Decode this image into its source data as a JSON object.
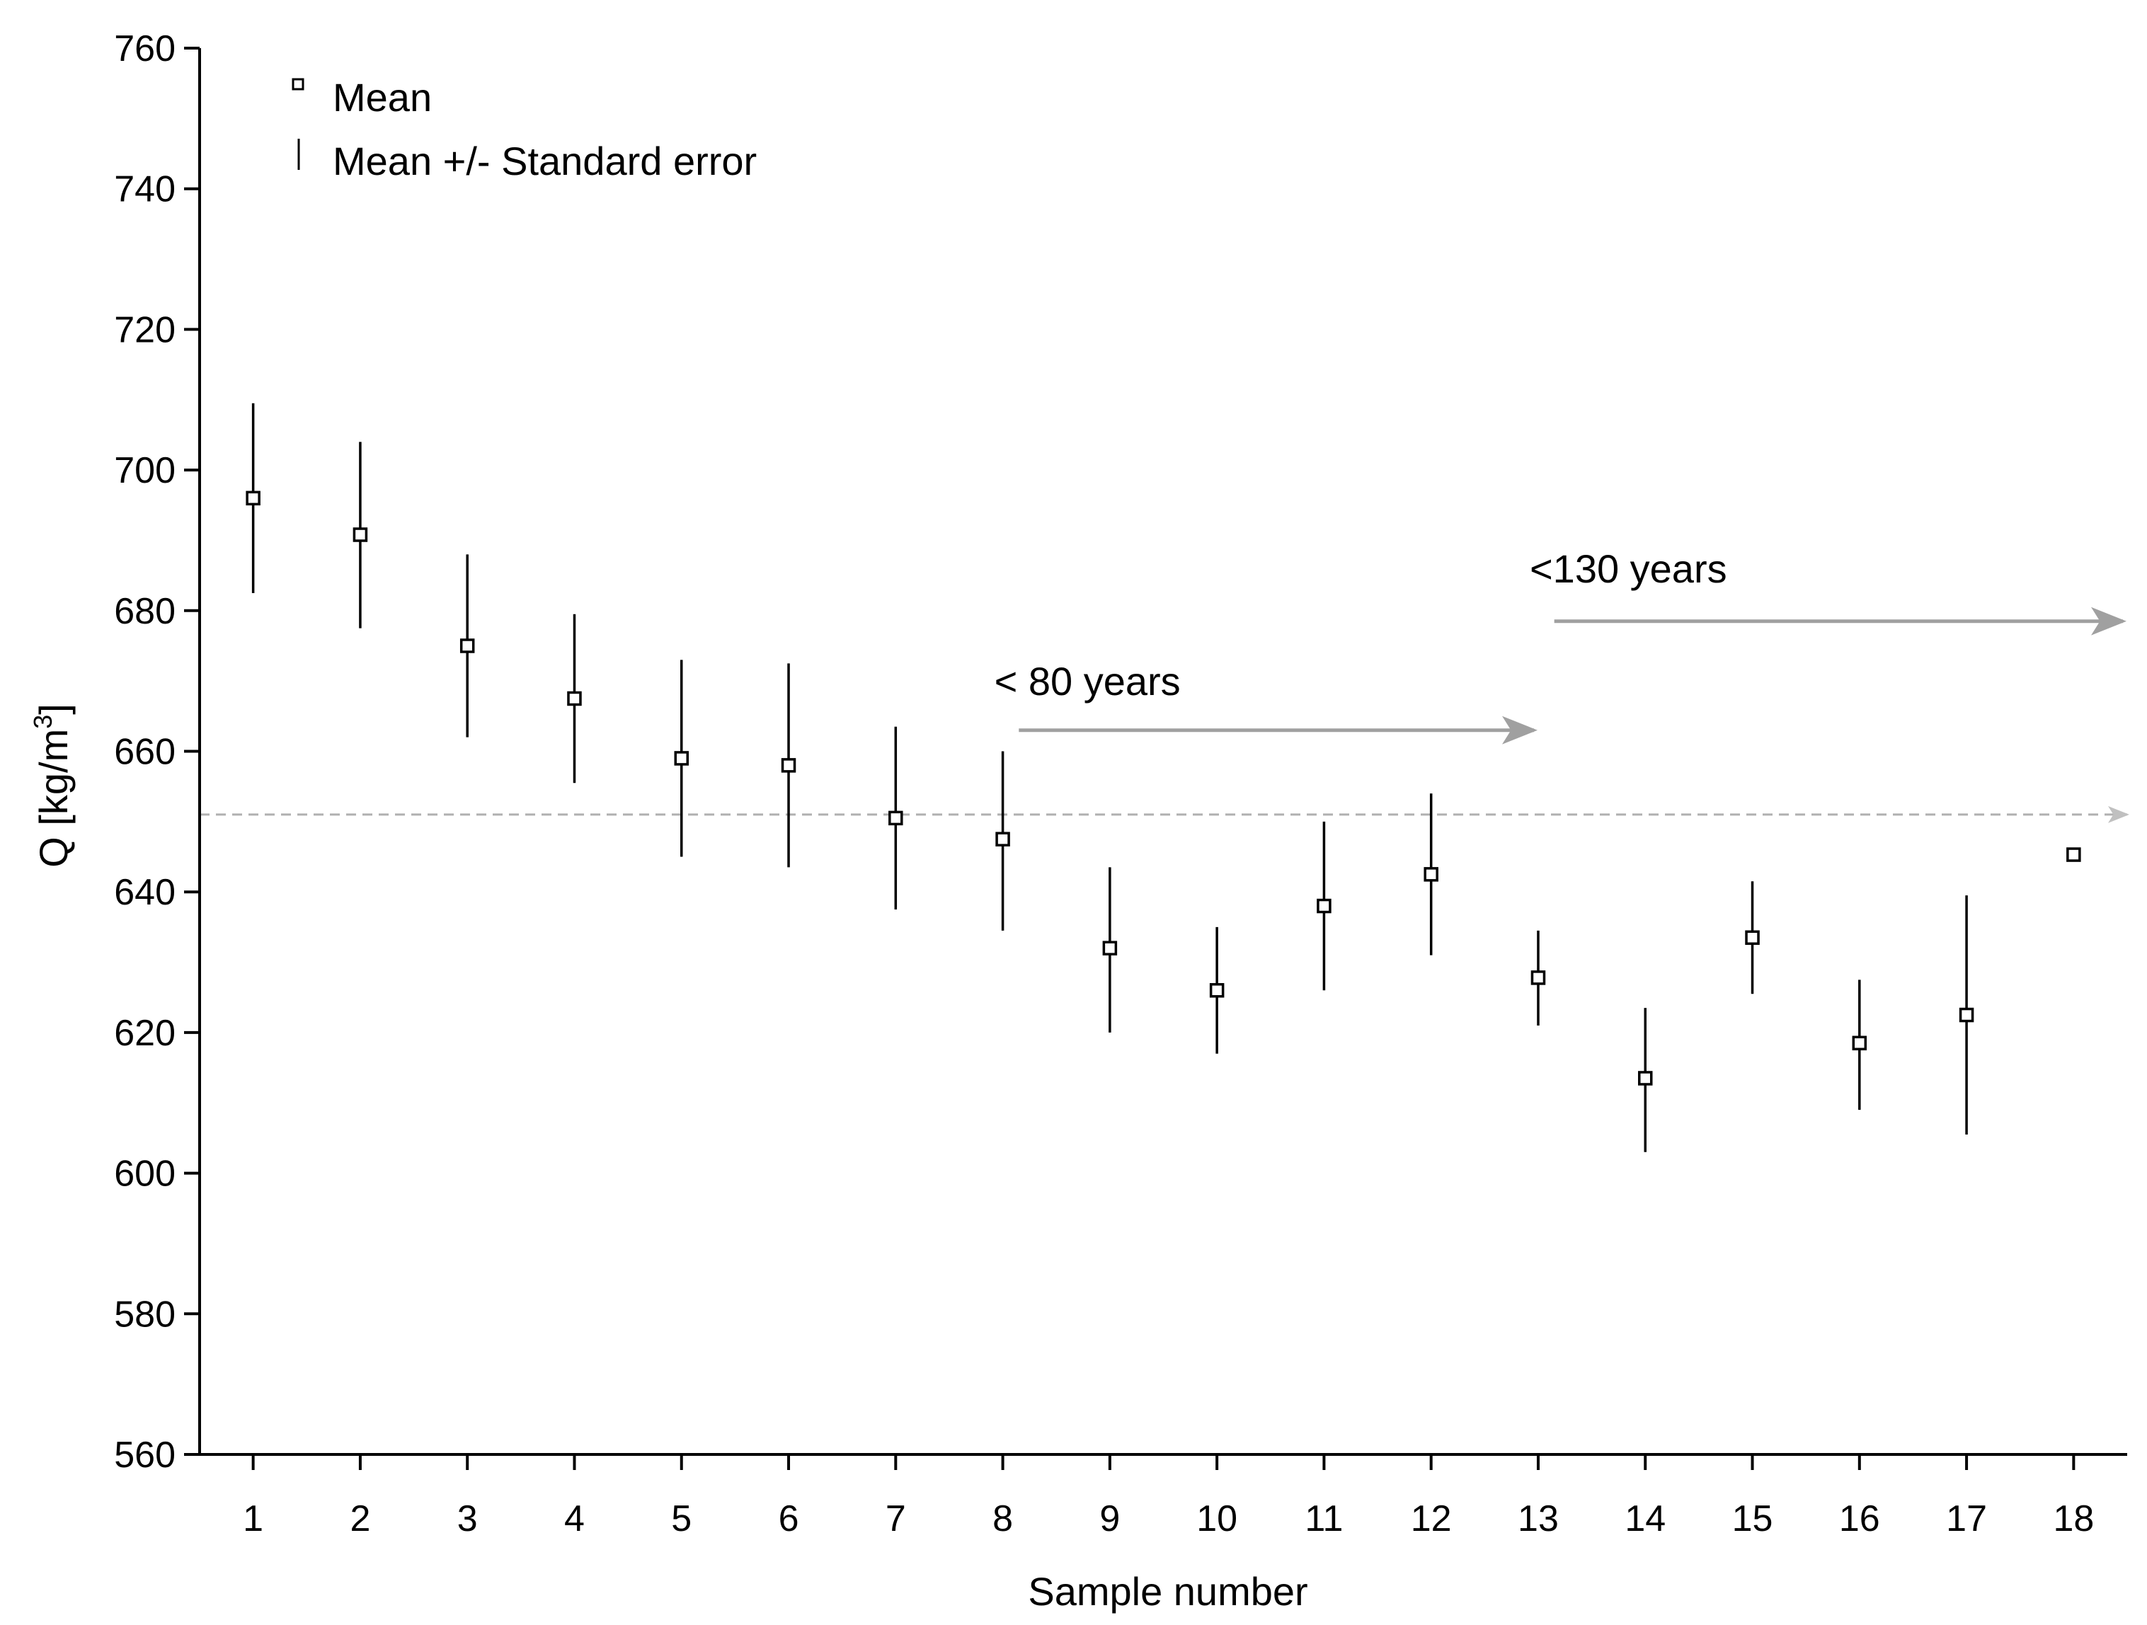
{
  "chart_data": {
    "type": "scatter",
    "title": "",
    "xlabel": "Sample number",
    "ylabel": {
      "base": "Q [kg/m",
      "sup": "3",
      "close": "]"
    },
    "xlim": [
      0.5,
      18.5
    ],
    "ylim": [
      560,
      760
    ],
    "x_ticks": [
      1,
      2,
      3,
      4,
      5,
      6,
      7,
      8,
      9,
      10,
      11,
      12,
      13,
      14,
      15,
      16,
      17,
      18
    ],
    "y_ticks": [
      560,
      580,
      600,
      620,
      640,
      660,
      680,
      700,
      720,
      740,
      760
    ],
    "legend": {
      "position": "top-left",
      "items": [
        {
          "symbol": "square-marker",
          "label": "Mean"
        },
        {
          "symbol": "vertical-line",
          "label": "Mean +/- Standard error"
        }
      ]
    },
    "series": [
      {
        "name": "Mean",
        "points": [
          {
            "x": 1,
            "mean": 696,
            "low": 682.5,
            "high": 709.5
          },
          {
            "x": 2,
            "mean": 690.8,
            "low": 677.5,
            "high": 704
          },
          {
            "x": 3,
            "mean": 675,
            "low": 662,
            "high": 688
          },
          {
            "x": 4,
            "mean": 667.5,
            "low": 655.5,
            "high": 679.5
          },
          {
            "x": 5,
            "mean": 659,
            "low": 645,
            "high": 673
          },
          {
            "x": 6,
            "mean": 658,
            "low": 643.5,
            "high": 672.5
          },
          {
            "x": 7,
            "mean": 650.5,
            "low": 637.5,
            "high": 663.5
          },
          {
            "x": 8,
            "mean": 647.5,
            "low": 634.5,
            "high": 660
          },
          {
            "x": 9,
            "mean": 632,
            "low": 620,
            "high": 643.5
          },
          {
            "x": 10,
            "mean": 626,
            "low": 617,
            "high": 635
          },
          {
            "x": 11,
            "mean": 638,
            "low": 626,
            "high": 650
          },
          {
            "x": 12,
            "mean": 642.5,
            "low": 631,
            "high": 654
          },
          {
            "x": 13,
            "mean": 627.8,
            "low": 621,
            "high": 634.5
          },
          {
            "x": 14,
            "mean": 613.5,
            "low": 603,
            "high": 623.5
          },
          {
            "x": 15,
            "mean": 633.5,
            "low": 625.5,
            "high": 641.5
          },
          {
            "x": 16,
            "mean": 618.5,
            "low": 609,
            "high": 627.5
          },
          {
            "x": 17,
            "mean": 622.5,
            "low": 605.5,
            "high": 639.5
          },
          {
            "x": 18,
            "mean": 645.3,
            "low": null,
            "high": null
          }
        ]
      }
    ],
    "reference_line": {
      "y": 651,
      "style": "dashed",
      "color": "#b0b0b0"
    },
    "annotations": [
      {
        "text": "< 80 years",
        "text_x": 8,
        "text_y": 668,
        "arrow_from_x": 8.15,
        "arrow_to_x": 13,
        "arrow_y": 663,
        "color": "#a0a0a0"
      },
      {
        "text": "<130 years",
        "text_x": 13,
        "text_y": 684,
        "arrow_from_x": 13.15,
        "arrow_to_x": 18.5,
        "arrow_y": 678.5,
        "color": "#a0a0a0"
      }
    ]
  }
}
